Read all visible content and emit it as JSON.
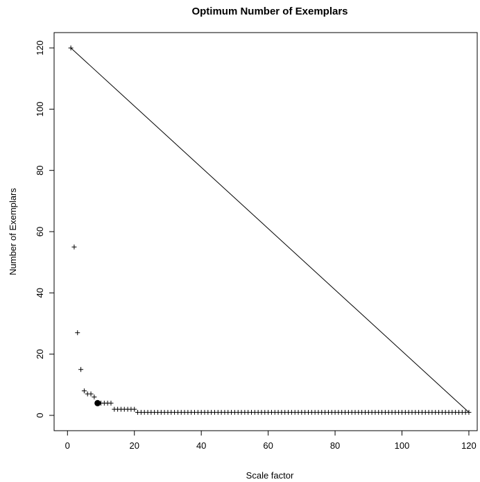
{
  "chart_data": {
    "type": "scatter",
    "title": "Optimum Number of Exemplars",
    "xlabel": "Scale factor",
    "ylabel": "Number of Exemplars",
    "xlim": [
      -4,
      122.5
    ],
    "ylim": [
      -5,
      125
    ],
    "x_ticks": [
      0,
      20,
      40,
      60,
      80,
      100,
      120
    ],
    "y_ticks": [
      0,
      20,
      40,
      60,
      80,
      100,
      120
    ],
    "x_tick_labels": [
      "0",
      "20",
      "40",
      "60",
      "80",
      "100",
      "120"
    ],
    "y_tick_labels": [
      "0",
      "20",
      "40",
      "60",
      "80",
      "100",
      "120"
    ],
    "grid": false,
    "series": [
      {
        "marker": "plus",
        "points": [
          [
            1,
            120
          ],
          [
            2,
            55
          ],
          [
            3,
            27
          ],
          [
            4,
            15
          ],
          [
            5,
            8
          ],
          [
            6,
            7
          ],
          [
            7,
            7
          ],
          [
            8,
            6
          ],
          [
            9,
            4
          ],
          [
            10,
            4
          ],
          [
            11,
            4
          ],
          [
            12,
            4
          ],
          [
            13,
            4
          ],
          [
            14,
            2
          ],
          [
            15,
            2
          ],
          [
            16,
            2
          ],
          [
            17,
            2
          ],
          [
            18,
            2
          ],
          [
            19,
            2
          ],
          [
            20,
            2
          ],
          [
            21,
            1
          ],
          [
            22,
            1
          ],
          [
            23,
            1
          ],
          [
            24,
            1
          ],
          [
            25,
            1
          ],
          [
            26,
            1
          ],
          [
            27,
            1
          ],
          [
            28,
            1
          ],
          [
            29,
            1
          ],
          [
            30,
            1
          ],
          [
            31,
            1
          ],
          [
            32,
            1
          ],
          [
            33,
            1
          ],
          [
            34,
            1
          ],
          [
            35,
            1
          ],
          [
            36,
            1
          ],
          [
            37,
            1
          ],
          [
            38,
            1
          ],
          [
            39,
            1
          ],
          [
            40,
            1
          ],
          [
            41,
            1
          ],
          [
            42,
            1
          ],
          [
            43,
            1
          ],
          [
            44,
            1
          ],
          [
            45,
            1
          ],
          [
            46,
            1
          ],
          [
            47,
            1
          ],
          [
            48,
            1
          ],
          [
            49,
            1
          ],
          [
            50,
            1
          ],
          [
            51,
            1
          ],
          [
            52,
            1
          ],
          [
            53,
            1
          ],
          [
            54,
            1
          ],
          [
            55,
            1
          ],
          [
            56,
            1
          ],
          [
            57,
            1
          ],
          [
            58,
            1
          ],
          [
            59,
            1
          ],
          [
            60,
            1
          ],
          [
            61,
            1
          ],
          [
            62,
            1
          ],
          [
            63,
            1
          ],
          [
            64,
            1
          ],
          [
            65,
            1
          ],
          [
            66,
            1
          ],
          [
            67,
            1
          ],
          [
            68,
            1
          ],
          [
            69,
            1
          ],
          [
            70,
            1
          ],
          [
            71,
            1
          ],
          [
            72,
            1
          ],
          [
            73,
            1
          ],
          [
            74,
            1
          ],
          [
            75,
            1
          ],
          [
            76,
            1
          ],
          [
            77,
            1
          ],
          [
            78,
            1
          ],
          [
            79,
            1
          ],
          [
            80,
            1
          ],
          [
            81,
            1
          ],
          [
            82,
            1
          ],
          [
            83,
            1
          ],
          [
            84,
            1
          ],
          [
            85,
            1
          ],
          [
            86,
            1
          ],
          [
            87,
            1
          ],
          [
            88,
            1
          ],
          [
            89,
            1
          ],
          [
            90,
            1
          ],
          [
            91,
            1
          ],
          [
            92,
            1
          ],
          [
            93,
            1
          ],
          [
            94,
            1
          ],
          [
            95,
            1
          ],
          [
            96,
            1
          ],
          [
            97,
            1
          ],
          [
            98,
            1
          ],
          [
            99,
            1
          ],
          [
            100,
            1
          ],
          [
            101,
            1
          ],
          [
            102,
            1
          ],
          [
            103,
            1
          ],
          [
            104,
            1
          ],
          [
            105,
            1
          ],
          [
            106,
            1
          ],
          [
            107,
            1
          ],
          [
            108,
            1
          ],
          [
            109,
            1
          ],
          [
            110,
            1
          ],
          [
            111,
            1
          ],
          [
            112,
            1
          ],
          [
            113,
            1
          ],
          [
            114,
            1
          ],
          [
            115,
            1
          ],
          [
            116,
            1
          ],
          [
            117,
            1
          ],
          [
            118,
            1
          ],
          [
            119,
            1
          ],
          [
            120,
            1
          ]
        ]
      },
      {
        "marker": "line",
        "points": [
          [
            1,
            120
          ],
          [
            120,
            1
          ]
        ]
      },
      {
        "marker": "filled-circle",
        "points": [
          [
            9,
            4
          ]
        ]
      }
    ]
  }
}
